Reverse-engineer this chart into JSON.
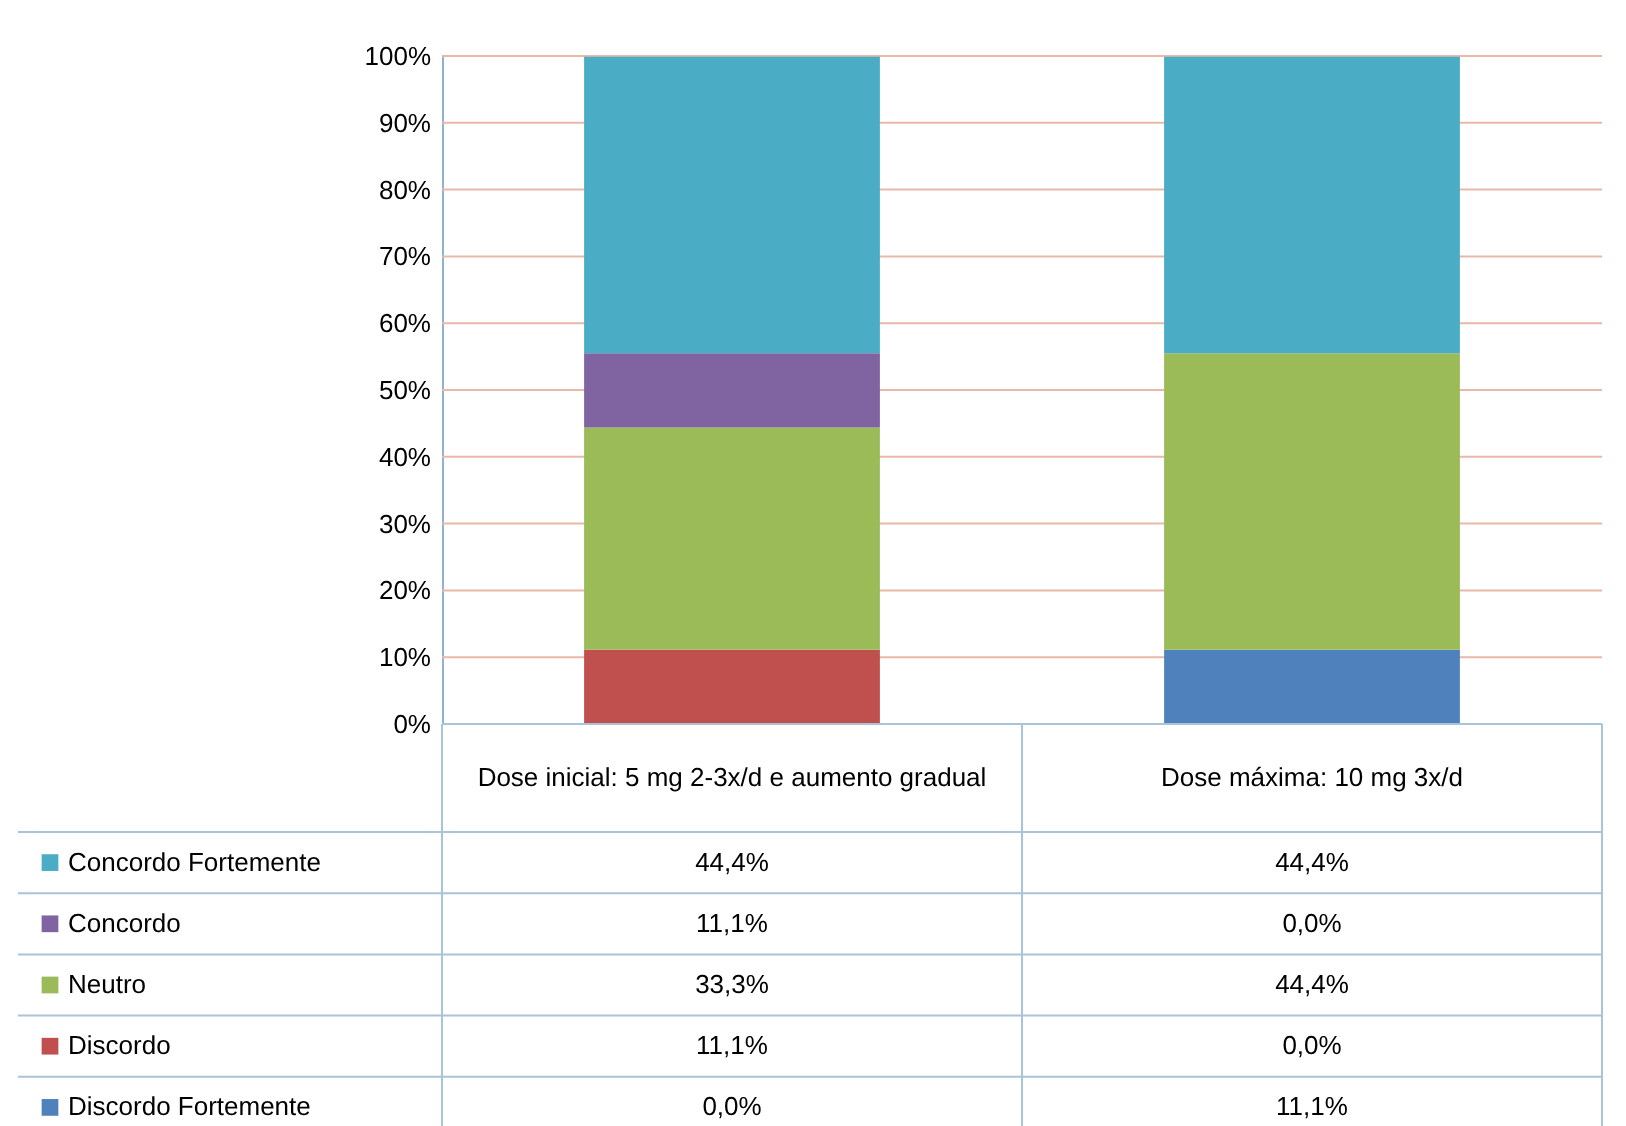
{
  "chart_data": {
    "type": "bar",
    "stacked": true,
    "categories": [
      "Dose inicial: 5 mg 2-3x/d e aumento gradual",
      "Dose máxima: 10 mg 3x/d"
    ],
    "series": [
      {
        "name": "Discordo Fortemente",
        "color": "#4f81bd",
        "values": [
          0.0,
          11.1
        ],
        "value_labels": [
          "0,0%",
          "11,1%"
        ]
      },
      {
        "name": "Discordo",
        "color": "#c0504d",
        "values": [
          11.1,
          0.0
        ],
        "value_labels": [
          "11,1%",
          "0,0%"
        ]
      },
      {
        "name": "Neutro",
        "color": "#9bbb59",
        "values": [
          33.3,
          44.4
        ],
        "value_labels": [
          "33,3%",
          "44,4%"
        ]
      },
      {
        "name": "Concordo",
        "color": "#8064a2",
        "values": [
          11.1,
          0.0
        ],
        "value_labels": [
          "11,1%",
          "0,0%"
        ]
      },
      {
        "name": "Concordo Fortemente",
        "color": "#4bacc6",
        "values": [
          44.4,
          44.4
        ],
        "value_labels": [
          "44,4%",
          "44,4%"
        ]
      }
    ],
    "ylim": [
      0,
      100
    ],
    "yticks": [
      {
        "value": 0,
        "label": "0%"
      },
      {
        "value": 10,
        "label": "10%"
      },
      {
        "value": 20,
        "label": "20%"
      },
      {
        "value": 30,
        "label": "30%"
      },
      {
        "value": 40,
        "label": "40%"
      },
      {
        "value": 50,
        "label": "50%"
      },
      {
        "value": 60,
        "label": "60%"
      },
      {
        "value": 70,
        "label": "70%"
      },
      {
        "value": 80,
        "label": "80%"
      },
      {
        "value": 90,
        "label": "90%"
      },
      {
        "value": 100,
        "label": "100%"
      }
    ],
    "grid": "y",
    "legend": "bottom"
  }
}
